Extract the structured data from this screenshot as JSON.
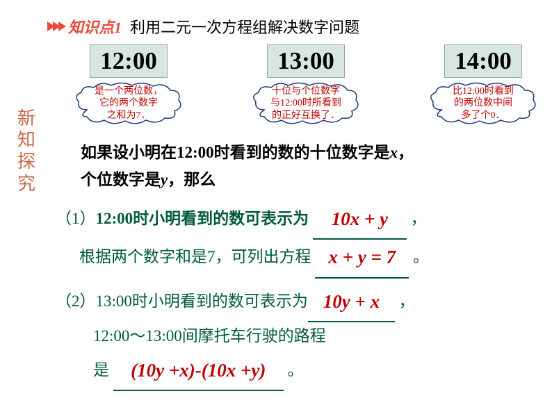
{
  "header": {
    "kp_label": "知识点1",
    "kp_title": "利用二元一次方程组解决数字问题"
  },
  "sidebar": {
    "chars": [
      "新",
      "知",
      "探",
      "究"
    ]
  },
  "clocks": [
    {
      "time": "12:00",
      "cloud": "是一个两位数，\n它的两个数字\n之和为7．"
    },
    {
      "time": "13:00",
      "cloud": "十位与个位数字\n与12:00时所看到\n的正好互换了．"
    },
    {
      "time": "14:00",
      "cloud": "比12:00时看到\n的两位数中间\n多了个0．"
    }
  ],
  "intro": {
    "line1_pre": "如果设小明在12:00时看到的数的十位数字是",
    "var_x": "x",
    "line1_post": "，",
    "line2_pre": "个位数字是",
    "var_y": "y",
    "line2_post": "，那么"
  },
  "q1": {
    "label": "（1）",
    "part1": "12:00时小明看到的数可表示为",
    "blank1": "10x + y",
    "comma": "，",
    "line2_pre": "根据两个数字和是7，可列出方程",
    "blank2": "x + y = 7",
    "period": "。"
  },
  "q2": {
    "label": "（2）",
    "part1": "13:00时小明看到的数可表示为",
    "blank1": "10y + x",
    "comma": "，",
    "line2": "12:00～13:00间摩托车行驶的路程",
    "line3_pre": "是",
    "blank2": "(10y +x)-(10x +y)",
    "period": "。"
  },
  "colors": {
    "accent_red": "#e94a3a",
    "deep_red": "#c00000",
    "green": "#005a3a",
    "sidebar": "#c76b4b",
    "clock_bg": "#d9e6df",
    "cloud_stroke": "#1a3a7a"
  }
}
